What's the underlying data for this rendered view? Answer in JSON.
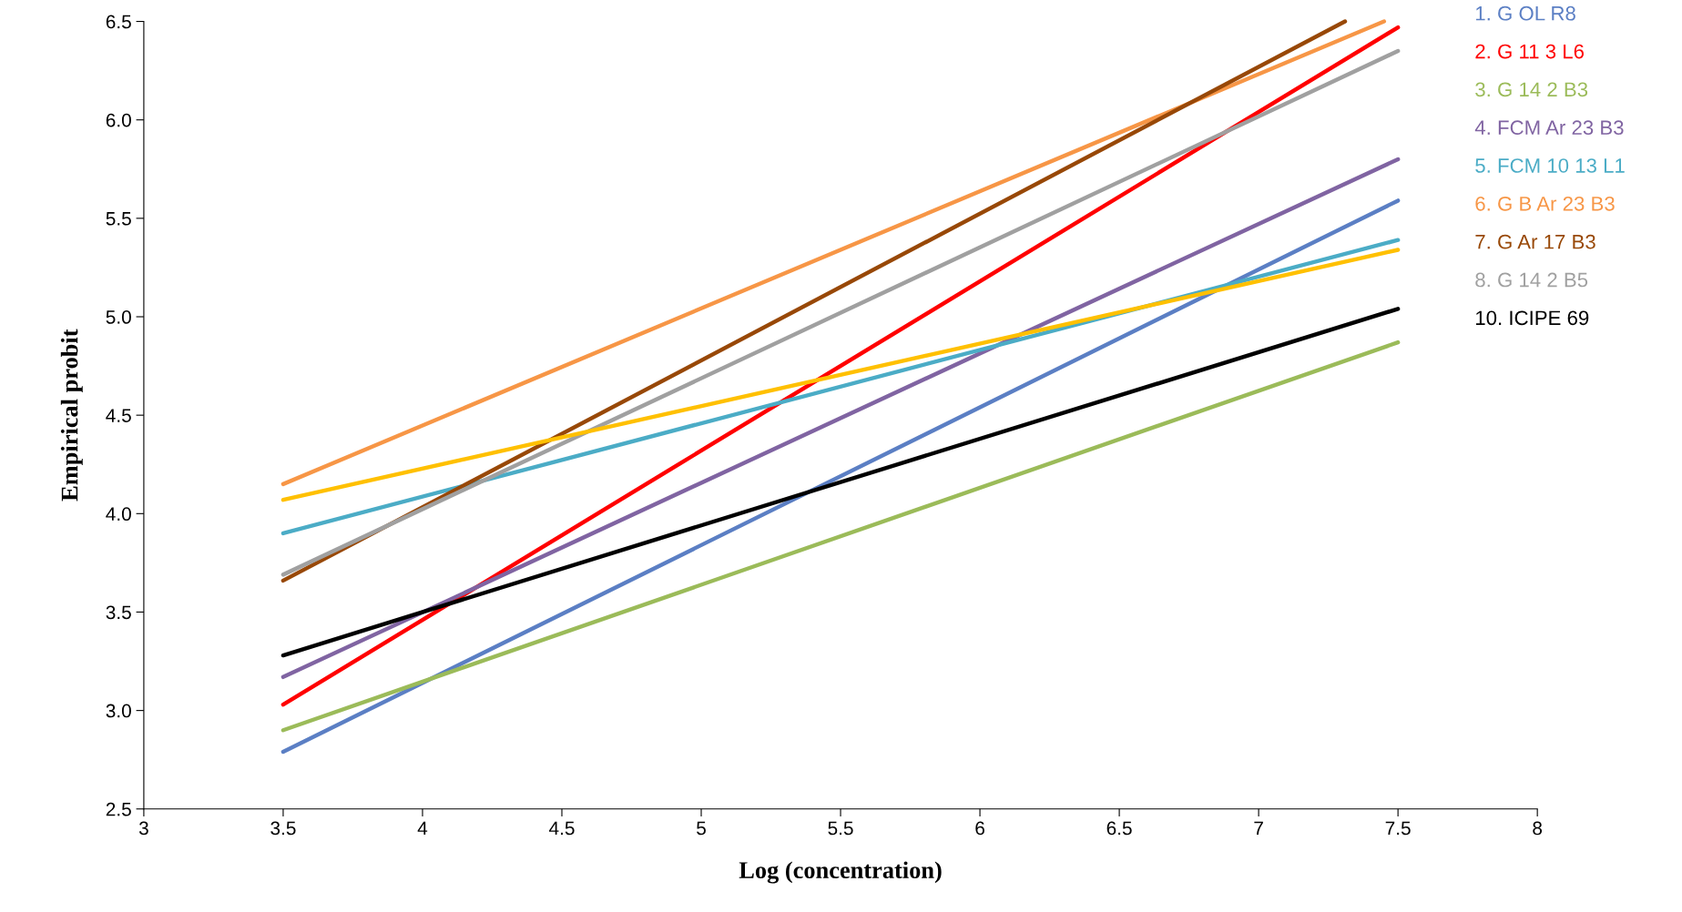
{
  "chart_data": {
    "type": "line",
    "xlabel": "Log (concentration)",
    "ylabel": "Empirical probit",
    "xlim": [
      3,
      8
    ],
    "xticks": [
      3,
      3.5,
      4,
      4.5,
      5,
      5.5,
      6,
      6.5,
      7,
      7.5,
      8
    ],
    "ylim": [
      2.5,
      6.5
    ],
    "yticks": [
      {
        "value": 2.5,
        "label": "2.5"
      },
      {
        "value": 3.0,
        "label": "3.0"
      },
      {
        "value": 3.5,
        "label": "3.5"
      },
      {
        "value": 4.0,
        "label": "4.0"
      },
      {
        "value": 4.5,
        "label": "4.5"
      },
      {
        "value": 5.0,
        "label": "5.0"
      },
      {
        "value": 5.5,
        "label": "5.5"
      },
      {
        "value": 6.0,
        "label": "6.0"
      },
      {
        "value": 6.5,
        "label": "6.5"
      }
    ],
    "grid": false,
    "legend": "right",
    "marker": "none",
    "line_style": "solid",
    "series": [
      {
        "name": "1. G OL R8",
        "color": "#5b7fc4",
        "x": [
          3.5,
          7.5
        ],
        "values": [
          2.79,
          5.59
        ]
      },
      {
        "name": "2. G 11 3 L6",
        "color": "#ff0000",
        "x": [
          3.5,
          7.5
        ],
        "values": [
          3.03,
          6.47
        ]
      },
      {
        "name": "3. G 14 2 B3",
        "color": "#9bbb59",
        "x": [
          3.5,
          7.5
        ],
        "values": [
          2.9,
          4.87
        ]
      },
      {
        "name": "4. FCM Ar 23 B3",
        "color": "#8064a2",
        "x": [
          3.5,
          7.5
        ],
        "values": [
          3.17,
          5.8
        ]
      },
      {
        "name": "5. FCM 10 13 L1",
        "color": "#4bacc6",
        "x": [
          3.5,
          7.5
        ],
        "values": [
          3.9,
          5.39
        ]
      },
      {
        "name": "6. G B Ar 23 B3",
        "color": "#f79646",
        "x": [
          3.5,
          7.45
        ],
        "values": [
          4.15,
          6.5
        ]
      },
      {
        "name": "7. G Ar 17 B3",
        "color": "#984807",
        "x": [
          3.5,
          7.31
        ],
        "values": [
          3.66,
          6.5
        ]
      },
      {
        "name": "8. G 14 2 B5",
        "color": "#a0a0a0",
        "x": [
          3.5,
          7.5
        ],
        "values": [
          3.69,
          6.35
        ]
      },
      {
        "color": "#ffc000",
        "x": [
          3.5,
          7.5
        ],
        "values": [
          4.07,
          5.34
        ]
      },
      {
        "name": "10. ICIPE 69",
        "color": "#000000",
        "x": [
          3.5,
          7.5
        ],
        "values": [
          3.28,
          5.04
        ]
      }
    ]
  }
}
